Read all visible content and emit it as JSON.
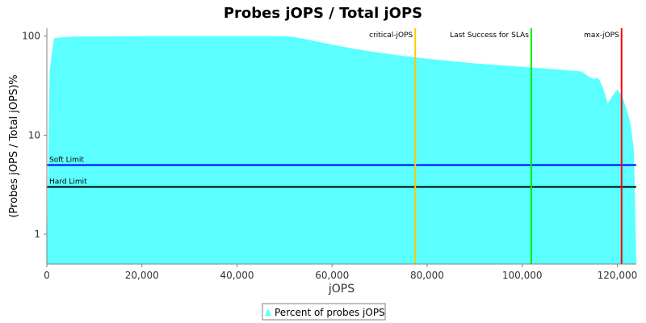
{
  "chart_data": {
    "type": "area",
    "title": "Probes jOPS / Total jOPS",
    "xlabel": "jOPS",
    "ylabel": "(Probes jOPS / Total jOPS)%",
    "xlim": [
      0,
      124000
    ],
    "ylim": [
      0.5,
      120
    ],
    "yscale": "log",
    "grid": false,
    "legend_position": "bottom",
    "x_ticks": [
      {
        "value": 0,
        "label": "0"
      },
      {
        "value": 20000,
        "label": "20,000"
      },
      {
        "value": 40000,
        "label": "40,000"
      },
      {
        "value": 60000,
        "label": "60,000"
      },
      {
        "value": 80000,
        "label": "80,000"
      },
      {
        "value": 100000,
        "label": "100,000"
      },
      {
        "value": 120000,
        "label": "120,000"
      }
    ],
    "y_ticks": [
      {
        "value": 1,
        "label": "1"
      },
      {
        "value": 10,
        "label": "10"
      },
      {
        "value": 100,
        "label": "100"
      }
    ],
    "series": [
      {
        "name": "Percent of probes jOPS",
        "color": "#5bffff",
        "x": [
          0,
          600,
          1500,
          3000,
          6000,
          10000,
          20000,
          30000,
          40000,
          50000,
          52000,
          55000,
          60000,
          65000,
          70000,
          75000,
          80000,
          85000,
          90000,
          95000,
          100000,
          105000,
          110000,
          112500,
          114000,
          115000,
          116000,
          117000,
          118000,
          119000,
          120000,
          121000,
          122000,
          122800,
          123500,
          124000
        ],
        "y": [
          0.5,
          45,
          95,
          97,
          99,
          99.5,
          100,
          100,
          100,
          100,
          98,
          92,
          82,
          74,
          68,
          63,
          59,
          56,
          53,
          51,
          49,
          47,
          45,
          44,
          39,
          37,
          38,
          30,
          21,
          25,
          29,
          25,
          18,
          13,
          7,
          0.5
        ]
      }
    ],
    "reference_lines": [
      {
        "orientation": "vertical",
        "value": 77500,
        "label": "critical-jOPS",
        "color": "#ffc800"
      },
      {
        "orientation": "vertical",
        "value": 101900,
        "label": "Last Success for SLAs",
        "color": "#00ee00"
      },
      {
        "orientation": "vertical",
        "value": 120900,
        "label": "max-jOPS",
        "color": "#ff0000"
      },
      {
        "orientation": "horizontal",
        "value": 5,
        "label": "Soft Limit",
        "color": "#0000ff"
      },
      {
        "orientation": "horizontal",
        "value": 3,
        "label": "Hard Limit",
        "color": "#000000"
      }
    ]
  }
}
